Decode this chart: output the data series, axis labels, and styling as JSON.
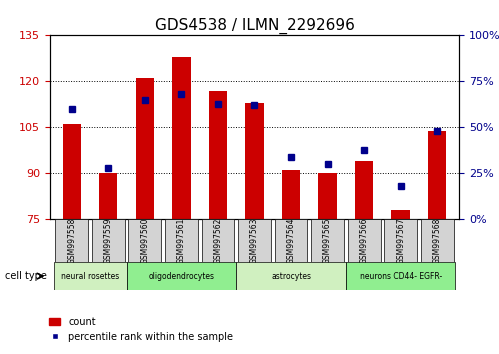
{
  "title": "GDS4538 / ILMN_2292696",
  "samples": [
    "GSM997558",
    "GSM997559",
    "GSM997560",
    "GSM997561",
    "GSM997562",
    "GSM997563",
    "GSM997564",
    "GSM997565",
    "GSM997566",
    "GSM997567",
    "GSM997568"
  ],
  "counts": [
    106,
    90,
    121,
    128,
    117,
    113,
    91,
    90,
    94,
    78,
    104
  ],
  "percentiles": [
    60,
    28,
    65,
    68,
    63,
    62,
    34,
    30,
    38,
    18,
    48
  ],
  "ylim_left": [
    75,
    135
  ],
  "ylim_right": [
    0,
    100
  ],
  "yticks_left": [
    75,
    90,
    105,
    120,
    135
  ],
  "yticks_right": [
    0,
    25,
    50,
    75,
    100
  ],
  "cell_types": [
    {
      "label": "neural rosettes",
      "start": 0,
      "end": 2,
      "color": "#d0f0c0"
    },
    {
      "label": "oligodendrocytes",
      "start": 2,
      "end": 5,
      "color": "#90ee90"
    },
    {
      "label": "astrocytes",
      "start": 5,
      "end": 8,
      "color": "#d0f0c0"
    },
    {
      "label": "neurons CD44- EGFR-",
      "start": 8,
      "end": 11,
      "color": "#90ee90"
    }
  ],
  "bar_color": "#cc0000",
  "dot_color": "#00008b",
  "bar_bottom": 75,
  "bar_width": 0.5,
  "xlabel_fontsize": 7,
  "ylabel_left_color": "#cc0000",
  "ylabel_right_color": "#00008b",
  "grid_color": "black",
  "cell_type_label": "cell type",
  "legend_count_label": "count",
  "legend_pct_label": "percentile rank within the sample",
  "bg_color": "#ffffff",
  "plot_bg": "#ffffff",
  "tick_fontsize": 8,
  "title_fontsize": 11
}
